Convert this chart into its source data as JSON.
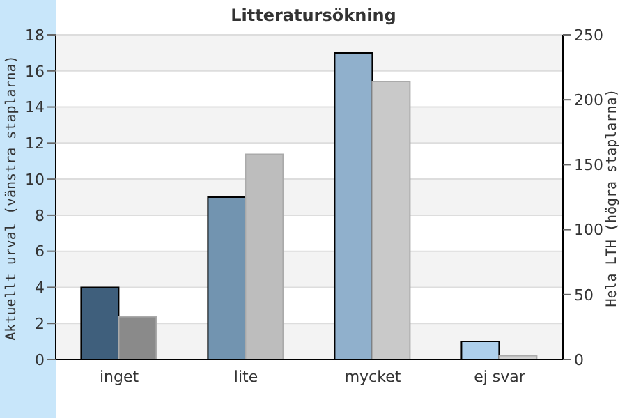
{
  "chart_data": {
    "type": "bar",
    "title": "Litteratursökning",
    "categories": [
      "inget",
      "lite",
      "mycket",
      "ej svar"
    ],
    "series": [
      {
        "values": [
          4,
          9,
          17,
          1
        ],
        "colors": [
          "#3f5f7c",
          "#7294b0",
          "#90b0cc",
          "#aed0ec"
        ]
      },
      {
        "values": [
          33,
          158,
          214,
          3
        ],
        "colors": [
          "#8a8a8a",
          "#bdbdbd",
          "#c9c9c9",
          "#d0d0d0"
        ],
        "axis": "y2"
      }
    ],
    "ylabel": "Aktuellt urval (vänstra staplarna)",
    "y2label": "Hela LTH (högra staplarna)",
    "ylim": [
      0,
      18
    ],
    "yticks": [
      0,
      2,
      4,
      6,
      8,
      10,
      12,
      14,
      16,
      18
    ],
    "y2lim": [
      0,
      250
    ],
    "y2ticks": [
      0,
      50,
      100,
      150,
      200,
      250
    ],
    "grid": "y"
  }
}
